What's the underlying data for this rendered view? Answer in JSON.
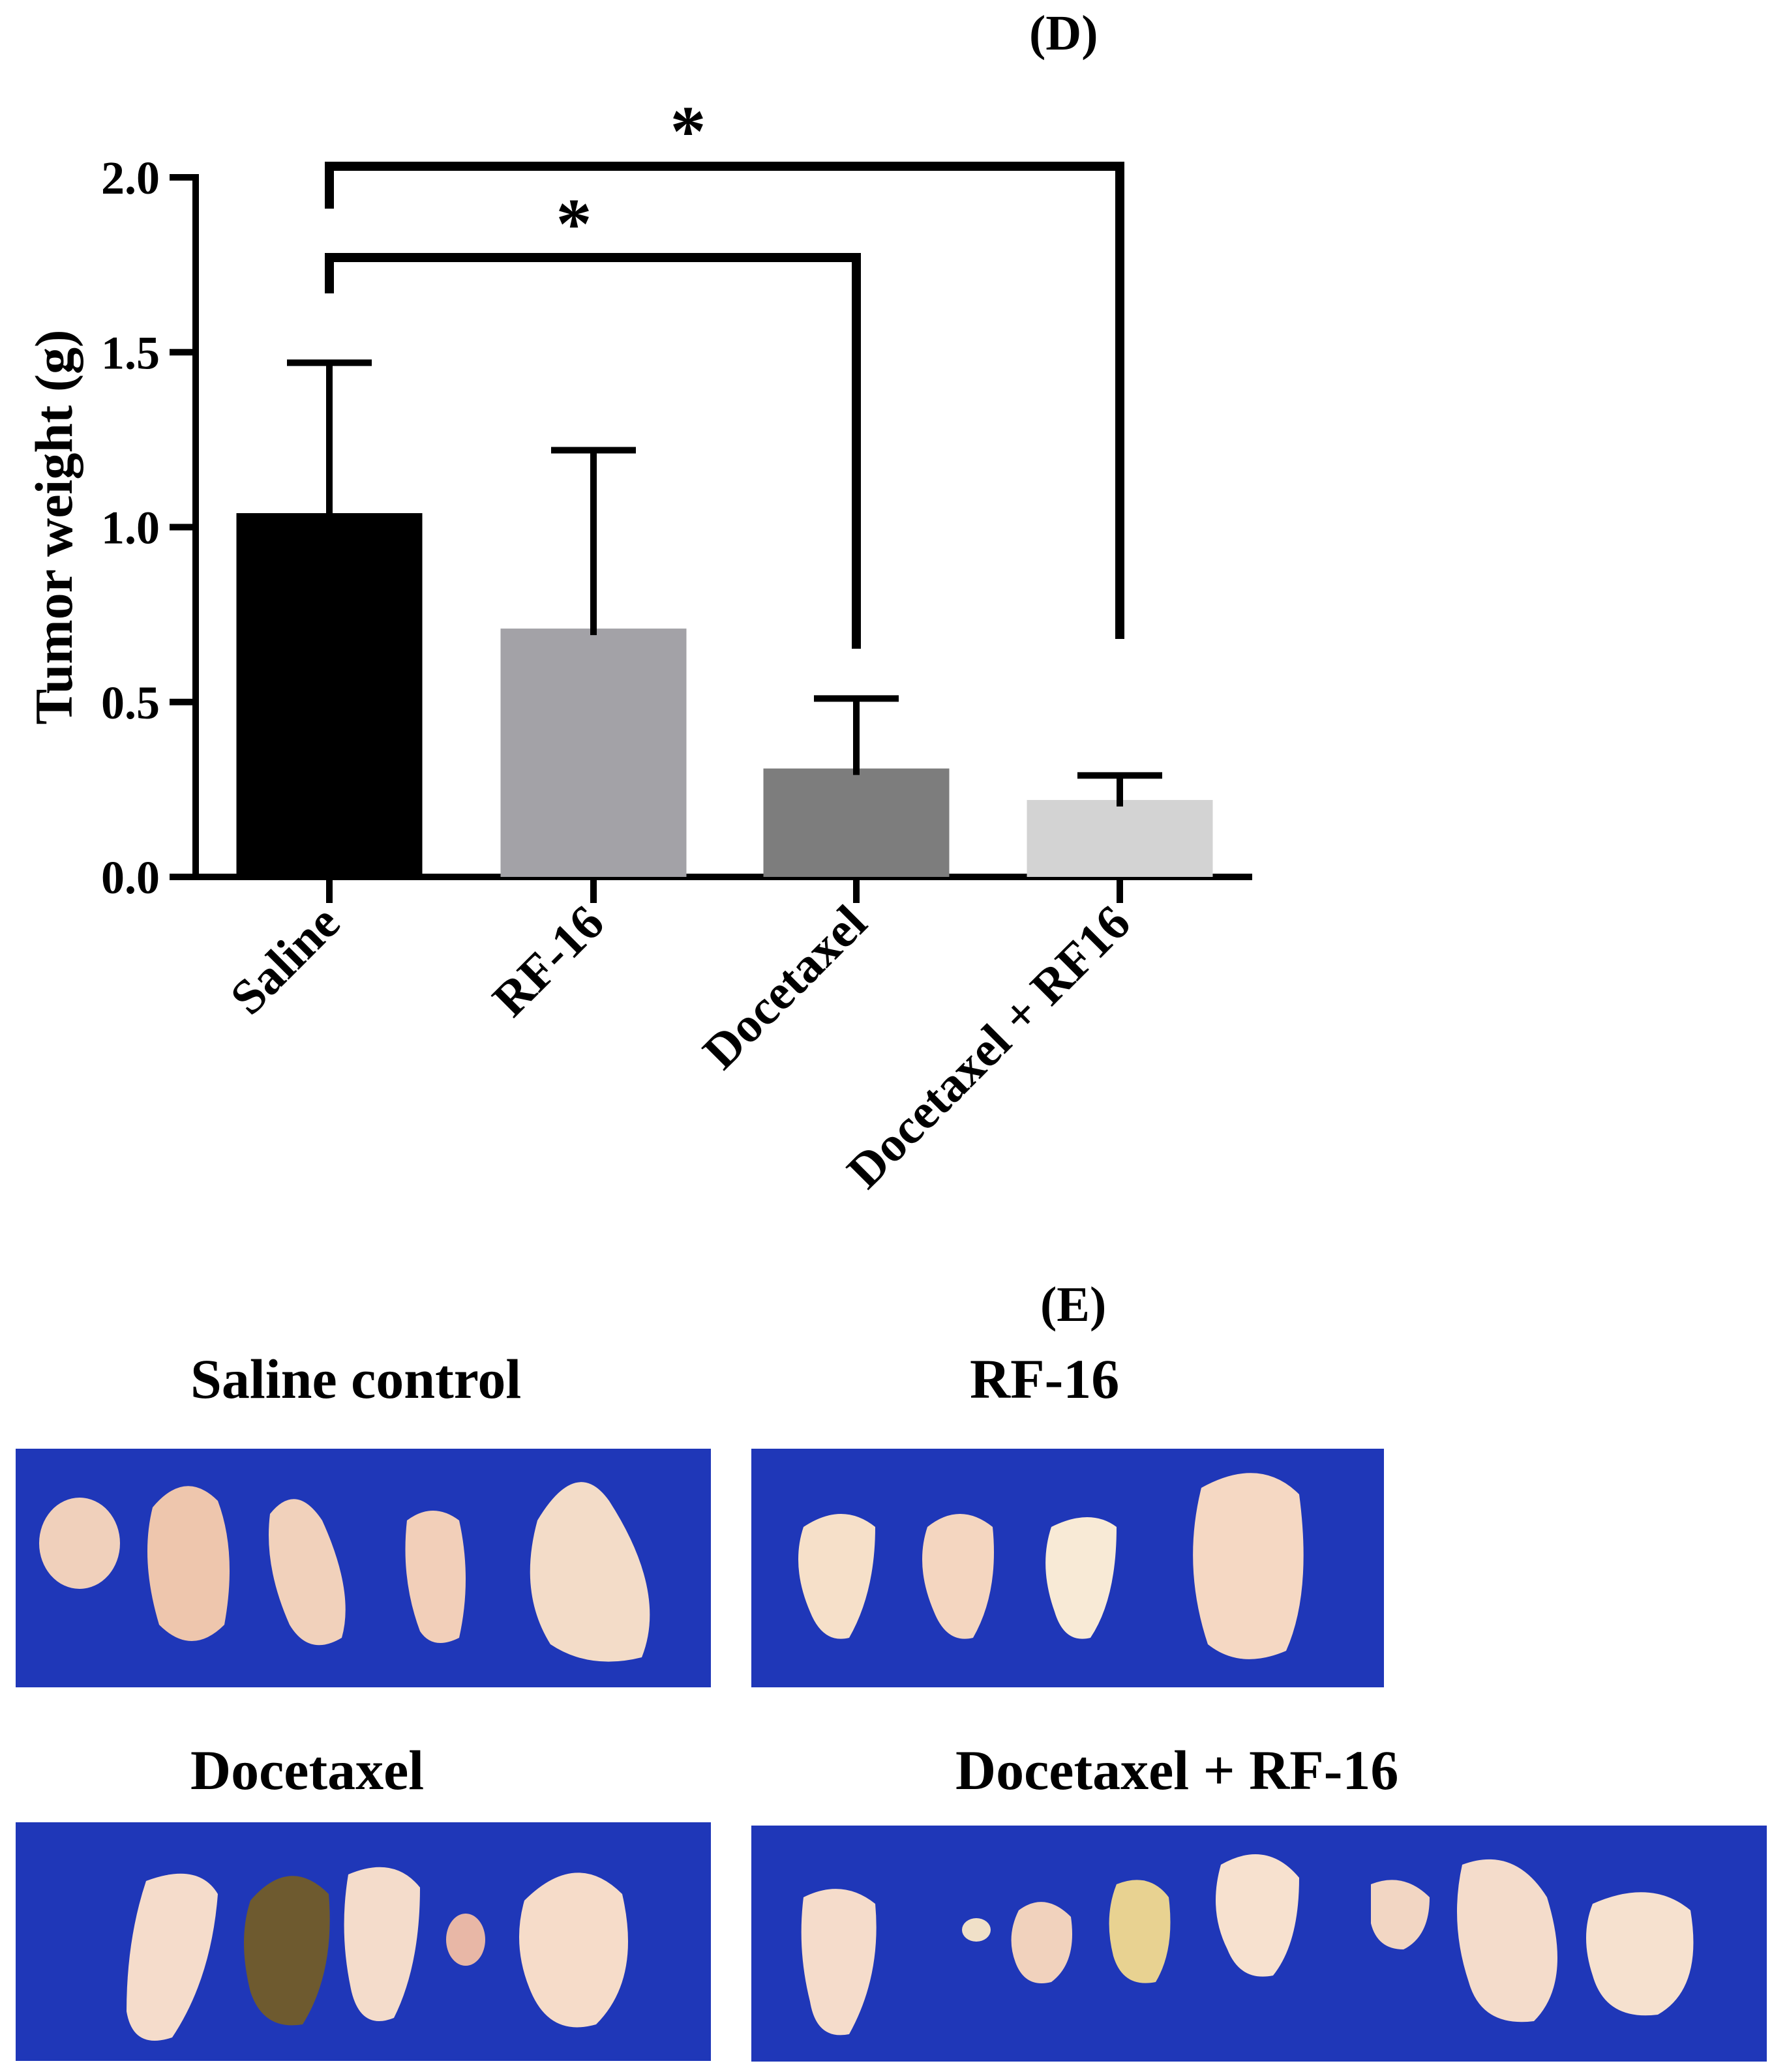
{
  "panel_d_label": "(D)",
  "panel_e_label": "(E)",
  "chart_data": {
    "type": "bar",
    "categories": [
      "Saline",
      "RF-16",
      "Docetaxel",
      "Docetaxel + RF16"
    ],
    "values": [
      1.04,
      0.71,
      0.31,
      0.22
    ],
    "error_upper": [
      1.47,
      1.22,
      0.51,
      0.29
    ],
    "bar_colors": [
      "#000000",
      "#a3a2a7",
      "#7d7d7d",
      "#d3d3d3"
    ],
    "ylabel": "Tumor weight (g)",
    "xlabel": "",
    "ylim": [
      0,
      2.0
    ],
    "yticks": [
      0.0,
      0.5,
      1.0,
      1.5,
      2.0
    ],
    "ytick_labels": [
      "0.0",
      "0.5",
      "1.0",
      "1.5",
      "2.0"
    ],
    "grid": false,
    "significance": [
      {
        "from": "Saline",
        "to": "Docetaxel",
        "label": "*"
      },
      {
        "from": "Saline",
        "to": "Docetaxel + RF16",
        "label": "*"
      }
    ]
  },
  "photos": {
    "saline_title": "Saline control",
    "rf16_title": "RF-16",
    "docetaxel_title": "Docetaxel",
    "combo_title": "Docetaxel + RF-16",
    "background_color": "#1f37b8",
    "tissue_color": "#f2d6c4"
  }
}
